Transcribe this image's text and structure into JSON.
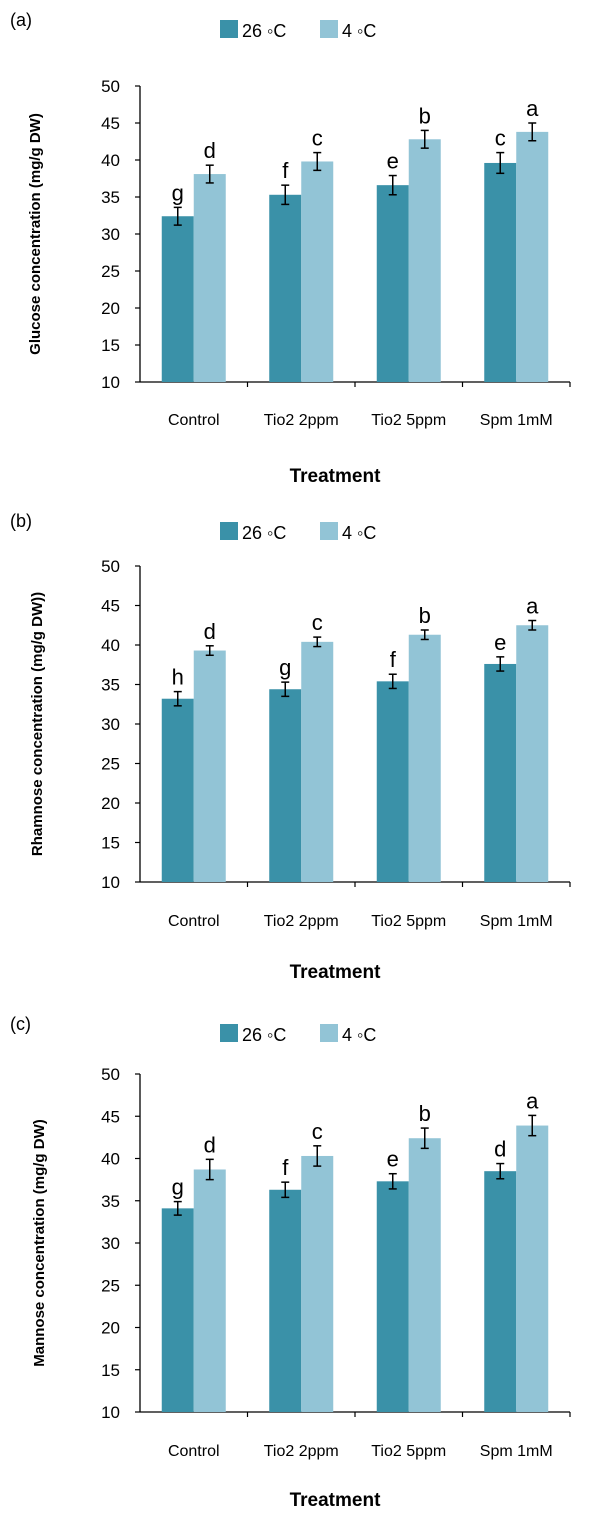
{
  "chart_data": [
    {
      "panel_label": "(a)",
      "type": "bar",
      "categories": [
        "Control",
        "Tio2 2ppm",
        "Tio2 5ppm",
        "Spm 1mM"
      ],
      "series": [
        {
          "name": "26 ◦C",
          "color": "#3a91a8",
          "values": [
            32.4,
            35.3,
            36.6,
            39.6
          ],
          "errors": [
            1.2,
            1.3,
            1.3,
            1.4
          ],
          "letters": [
            "g",
            "f",
            "e",
            "c"
          ]
        },
        {
          "name": "4 ◦C",
          "color": "#92c4d6",
          "values": [
            38.1,
            39.8,
            42.8,
            43.8
          ],
          "errors": [
            1.2,
            1.2,
            1.2,
            1.2
          ],
          "letters": [
            "d",
            "c",
            "b",
            "a"
          ]
        }
      ],
      "xlabel": "Treatment",
      "ylabel": "Glucose concentration (mg/g DW)",
      "ylim": [
        10,
        50
      ],
      "yticks": [
        "10",
        "15",
        "20",
        "25",
        "30",
        "35",
        "40",
        "45",
        "50"
      ],
      "grid": false,
      "legend": "top-center"
    },
    {
      "panel_label": "(b)",
      "type": "bar",
      "categories": [
        "Control",
        "Tio2 2ppm",
        "Tio2 5ppm",
        "Spm 1mM"
      ],
      "series": [
        {
          "name": "26 ◦C",
          "color": "#3a91a8",
          "values": [
            33.2,
            34.4,
            35.4,
            37.6
          ],
          "errors": [
            0.9,
            0.9,
            0.9,
            0.9
          ],
          "letters": [
            "h",
            "g",
            "f",
            "e"
          ]
        },
        {
          "name": "4 ◦C",
          "color": "#92c4d6",
          "values": [
            39.3,
            40.4,
            41.3,
            42.5
          ],
          "errors": [
            0.6,
            0.6,
            0.6,
            0.6
          ],
          "letters": [
            "d",
            "c",
            "b",
            "a"
          ]
        }
      ],
      "xlabel": "Treatment",
      "ylabel": "Rhamnose concentration (mg/g DW))",
      "ylim": [
        10,
        50
      ],
      "yticks": [
        "10",
        "15",
        "20",
        "25",
        "30",
        "35",
        "40",
        "45",
        "50"
      ],
      "grid": false,
      "legend": "top-center"
    },
    {
      "panel_label": "(c)",
      "type": "bar",
      "categories": [
        "Control",
        "Tio2 2ppm",
        "Tio2 5ppm",
        "Spm 1mM"
      ],
      "series": [
        {
          "name": "26 ◦C",
          "color": "#3a91a8",
          "values": [
            34.1,
            36.3,
            37.3,
            38.5
          ],
          "errors": [
            0.8,
            0.9,
            0.9,
            0.9
          ],
          "letters": [
            "g",
            "f",
            "e",
            "d"
          ]
        },
        {
          "name": "4 ◦C",
          "color": "#92c4d6",
          "values": [
            38.7,
            40.3,
            42.4,
            43.9
          ],
          "errors": [
            1.2,
            1.2,
            1.2,
            1.2
          ],
          "letters": [
            "d",
            "c",
            "b",
            "a"
          ]
        }
      ],
      "xlabel": "Treatment",
      "ylabel": "Mannose concentration (mg/g DW)",
      "ylim": [
        10,
        50
      ],
      "yticks": [
        "10",
        "15",
        "20",
        "25",
        "30",
        "35",
        "40",
        "45",
        "50"
      ],
      "grid": false,
      "legend": "top-center"
    }
  ]
}
